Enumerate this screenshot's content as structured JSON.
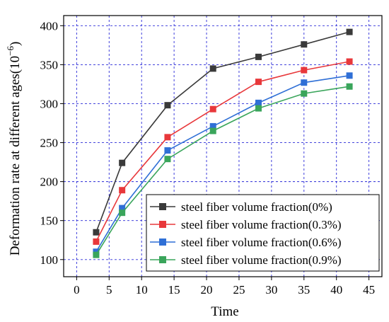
{
  "chart_data": {
    "type": "line",
    "xlabel": "Time",
    "ylabel": "Deformation rate at different ages(10",
    "ylabel_sup": "−6",
    "ylabel_close": ")",
    "xlim": [
      -2,
      47
    ],
    "ylim": [
      78,
      413
    ],
    "xticks": [
      0,
      5,
      10,
      15,
      20,
      25,
      30,
      35,
      40,
      45
    ],
    "yticks": [
      100,
      150,
      200,
      250,
      300,
      350,
      400
    ],
    "grid": true,
    "legend_position": "bottom-right",
    "x": [
      3,
      7,
      14,
      21,
      28,
      35,
      42
    ],
    "series": [
      {
        "name": "steel fiber volume fraction(0%)",
        "color": "#3a3a3a",
        "values": [
          135,
          224,
          298,
          345,
          360,
          376,
          392
        ]
      },
      {
        "name": "steel fiber volume fraction(0.3%)",
        "color": "#e8383b",
        "values": [
          123,
          189,
          257,
          293,
          328,
          343,
          354
        ]
      },
      {
        "name": "steel fiber volume fraction(0.6%)",
        "color": "#2f6fd6",
        "values": [
          110,
          166,
          240,
          271,
          301,
          327,
          336
        ]
      },
      {
        "name": "steel fiber volume fraction(0.9%)",
        "color": "#3aa55b",
        "values": [
          106,
          160,
          229,
          265,
          294,
          313,
          322
        ]
      }
    ]
  }
}
